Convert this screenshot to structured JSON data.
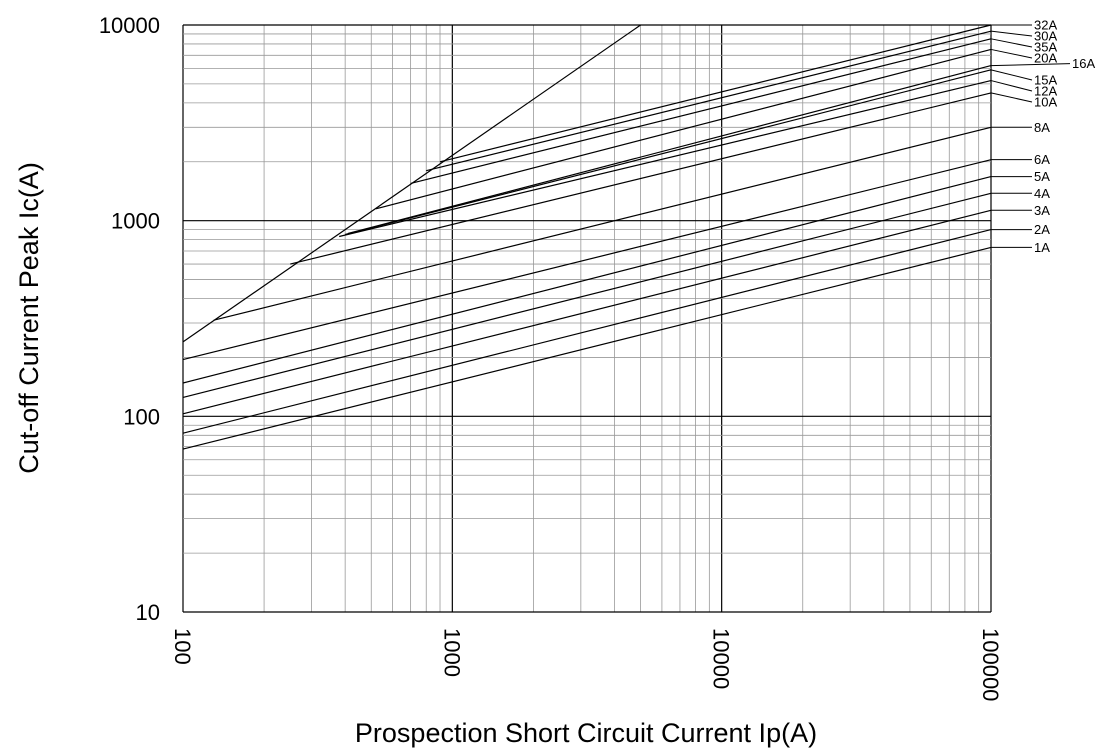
{
  "chart_data": {
    "type": "line",
    "xlabel": "Prospection Short Circuit Current Ip(A)",
    "ylabel": "Cut-off Current Peak Ic(A)",
    "x_scale": "log",
    "y_scale": "log",
    "xlim": [
      100,
      100000
    ],
    "ylim": [
      10,
      10000
    ],
    "x_ticks": [
      "100",
      "1000",
      "10000",
      "100000"
    ],
    "y_ticks": [
      "10",
      "100",
      "1000",
      "10000"
    ],
    "grid": true,
    "colors": {
      "line": "#000000",
      "grid_minor": "#999999",
      "grid_major": "#000000"
    },
    "series": [
      {
        "name": "1A",
        "points": [
          [
            100,
            68
          ],
          [
            100000,
            730
          ]
        ]
      },
      {
        "name": "2A",
        "points": [
          [
            100,
            82
          ],
          [
            100000,
            900
          ]
        ]
      },
      {
        "name": "3A",
        "points": [
          [
            100,
            103
          ],
          [
            100000,
            1130
          ]
        ]
      },
      {
        "name": "4A",
        "points": [
          [
            100,
            125
          ],
          [
            100000,
            1380
          ]
        ]
      },
      {
        "name": "5A",
        "points": [
          [
            100,
            148
          ],
          [
            100000,
            1680
          ]
        ]
      },
      {
        "name": "6A",
        "points": [
          [
            100,
            195
          ],
          [
            100000,
            2050
          ]
        ]
      },
      {
        "name": "8A",
        "points": [
          [
            130,
            310
          ],
          [
            100000,
            3000
          ]
        ]
      },
      {
        "name": "10A",
        "points": [
          [
            250,
            600
          ],
          [
            100000,
            4500
          ]
        ]
      },
      {
        "name": "12A",
        "points": [
          [
            380,
            830
          ],
          [
            100000,
            5200
          ]
        ]
      },
      {
        "name": "15A",
        "points": [
          [
            400,
            850
          ],
          [
            100000,
            5900
          ]
        ]
      },
      {
        "name": "16A",
        "points": [
          [
            410,
            860
          ],
          [
            100000,
            6200
          ]
        ]
      },
      {
        "name": "20A",
        "points": [
          [
            520,
            1150
          ],
          [
            100000,
            7500
          ]
        ]
      },
      {
        "name": "35A",
        "points": [
          [
            700,
            1550
          ],
          [
            100000,
            8500
          ]
        ]
      },
      {
        "name": "30A",
        "points": [
          [
            800,
            1800
          ],
          [
            100000,
            9300
          ]
        ]
      },
      {
        "name": "32A",
        "points": [
          [
            900,
            2000
          ],
          [
            100000,
            10000
          ]
        ]
      }
    ],
    "envelope": {
      "points": [
        [
          100,
          240
        ],
        [
          5000,
          10000
        ]
      ]
    }
  }
}
